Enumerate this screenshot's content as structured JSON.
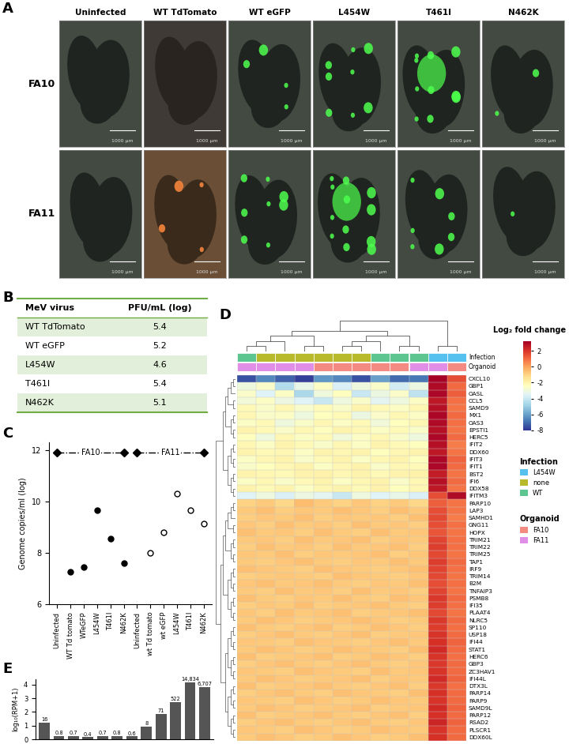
{
  "chart_data": [
    {
      "type": "image_grid",
      "panel": "A",
      "columns": [
        "Uninfected",
        "WT TdTomato",
        "WT eGFP",
        "L454W",
        "T461I",
        "N462K"
      ],
      "rows": [
        "FA10",
        "FA11"
      ],
      "scale_bar": "1000 µm"
    },
    {
      "type": "table",
      "panel": "B",
      "header": [
        "MeV virus",
        "PFU/mL (log)"
      ],
      "rows": [
        [
          "WT TdTomato",
          5.4
        ],
        [
          "WT eGFP",
          5.2
        ],
        [
          "L454W",
          4.6
        ],
        [
          "T461I",
          5.4
        ],
        [
          "N462K",
          5.1
        ]
      ]
    },
    {
      "type": "scatter",
      "panel": "C",
      "categories": [
        "Uninfected",
        "WT Td tomato",
        "WTeGFP",
        "L454W",
        "T461I",
        "N462K",
        "Uninfected",
        "wt Td tomato",
        "wt eGFP",
        "L454W",
        "T461I",
        "N462K"
      ],
      "y_label": "Genome copies/ml (log)",
      "ylim": [
        6,
        12.3
      ],
      "yticks": [
        6,
        8,
        10,
        12
      ],
      "series": [
        {
          "name": "FA10",
          "type": "line",
          "line_style": "dashdot",
          "color": "#000000",
          "values": [
            11.9,
            11.9,
            11.9,
            11.9,
            11.9,
            11.9,
            null,
            null,
            null,
            null,
            null,
            null
          ]
        },
        {
          "name": "FA11",
          "type": "line",
          "line_style": "dashdot",
          "color": "#000000",
          "values": [
            null,
            null,
            null,
            null,
            null,
            null,
            11.9,
            11.9,
            11.9,
            11.9,
            11.9,
            11.9
          ]
        },
        {
          "type": "scatter",
          "marker": "diamond",
          "color": "#000000",
          "values": [
            11.9,
            null,
            null,
            null,
            null,
            11.9,
            11.9,
            null,
            null,
            null,
            null,
            11.9
          ]
        },
        {
          "type": "scatter",
          "marker": "circle",
          "color": "#000000",
          "values": [
            null,
            7.25,
            7.45,
            9.65,
            8.55,
            7.6,
            null,
            null,
            null,
            null,
            null,
            null
          ]
        },
        {
          "type": "scatter",
          "marker": "hollow_circle",
          "color": "#000000",
          "values": [
            null,
            null,
            null,
            null,
            null,
            null,
            null,
            8.0,
            8.8,
            10.3,
            9.65,
            9.15
          ]
        }
      ]
    },
    {
      "type": "heatmap",
      "panel": "D",
      "rows": [
        "CXCL10",
        "GBP1",
        "OASL",
        "CCL5",
        "SAMD9",
        "MX1",
        "OAS3",
        "EPSTI1",
        "HERC5",
        "IFIT2",
        "DDX60",
        "IFIT3",
        "IFIT1",
        "BST2",
        "IFI6",
        "DDX58",
        "IFITM3",
        "PARP10",
        "LAP3",
        "SAMHD1",
        "GNG11",
        "HOPX",
        "TRIM21",
        "TRIM22",
        "TRIM25",
        "TAP1",
        "IRF9",
        "TRIM14",
        "B2M",
        "TNFAIP3",
        "PSMB8",
        "IFI35",
        "PLAAT4",
        "NLRC5",
        "SP110",
        "USP18",
        "IFI44",
        "STAT1",
        "HERC6",
        "GBP3",
        "ZC3HAV1",
        "IFI44L",
        "DTX3L",
        "PARP14",
        "PARP9",
        "SAMD9L",
        "PARP12",
        "RSAD2",
        "PLSCR1",
        "DDX60L"
      ],
      "values": [
        [
          -7.5,
          -6.5,
          -7.2,
          -7.8,
          -6.2,
          -6.5,
          -7.5,
          -6.0,
          -7.0,
          -6.8,
          3.2,
          1.5
        ],
        [
          -3.0,
          -2.6,
          -4.5,
          -3.2,
          -2.5,
          -3.6,
          -3.0,
          -2.6,
          -3.8,
          -3.1,
          2.9,
          1.0
        ],
        [
          -2.6,
          -3.5,
          -2.5,
          -4.6,
          -3.0,
          -2.4,
          -4.0,
          -3.1,
          -2.6,
          -4.2,
          3.0,
          1.2
        ],
        [
          -2.9,
          -2.5,
          -3.1,
          -3.5,
          -4.0,
          -3.0,
          -2.6,
          -3.4,
          -3.0,
          -2.5,
          2.6,
          0.9
        ],
        [
          -2.2,
          -2.6,
          -2.1,
          -2.7,
          -2.3,
          -2.6,
          -2.0,
          -2.2,
          -2.5,
          -2.1,
          2.8,
          0.8
        ],
        [
          -2.1,
          -2.6,
          -2.5,
          -3.0,
          -2.4,
          -2.2,
          -3.1,
          -2.6,
          -2.1,
          -2.5,
          3.0,
          1.0
        ],
        [
          -2.5,
          -2.2,
          -3.0,
          -2.6,
          -2.1,
          -2.5,
          -2.2,
          -2.9,
          -2.4,
          -2.1,
          2.9,
          0.9
        ],
        [
          -2.0,
          -2.2,
          -2.6,
          -2.1,
          -2.4,
          -2.0,
          -2.1,
          -2.5,
          -2.2,
          -2.6,
          2.8,
          0.8
        ],
        [
          -2.4,
          -3.0,
          -2.1,
          -2.5,
          -2.2,
          -2.9,
          -2.5,
          -2.1,
          -2.6,
          -3.0,
          3.0,
          1.0
        ],
        [
          -2.1,
          -2.5,
          -2.0,
          -2.2,
          -2.6,
          -2.1,
          -2.5,
          -2.0,
          -2.2,
          -2.4,
          2.8,
          0.7
        ],
        [
          -2.0,
          -2.2,
          -2.1,
          -2.5,
          -2.0,
          -2.1,
          -2.0,
          -2.4,
          -2.1,
          -2.0,
          2.6,
          0.8
        ],
        [
          -2.5,
          -2.1,
          -2.0,
          -2.6,
          -2.2,
          -2.0,
          -2.5,
          -2.1,
          -2.0,
          -2.4,
          3.0,
          1.1
        ],
        [
          -2.6,
          -2.4,
          -2.1,
          -2.0,
          -2.5,
          -2.1,
          -2.0,
          -2.6,
          -2.1,
          -2.2,
          3.0,
          1.0
        ],
        [
          -2.0,
          -2.1,
          -2.2,
          -2.0,
          -1.9,
          -2.1,
          -2.0,
          -2.2,
          -2.0,
          -1.9,
          2.5,
          0.8
        ],
        [
          -2.5,
          -2.1,
          -2.6,
          -2.2,
          -2.0,
          -2.5,
          -2.1,
          -2.0,
          -2.6,
          -2.1,
          2.8,
          1.0
        ],
        [
          -2.0,
          -2.2,
          -2.0,
          -2.5,
          -2.1,
          -2.0,
          -2.2,
          -2.0,
          -2.4,
          -2.1,
          2.6,
          0.8
        ],
        [
          -3.5,
          -3.0,
          -3.6,
          -3.1,
          -3.4,
          -4.0,
          -3.0,
          -3.5,
          -3.2,
          -3.6,
          1.5,
          2.9
        ],
        [
          -1.0,
          -0.8,
          -1.1,
          -0.5,
          -0.8,
          -1.0,
          -0.7,
          -1.0,
          -0.8,
          -1.1,
          1.2,
          0.8
        ],
        [
          -0.8,
          -0.6,
          -0.9,
          -0.7,
          -0.8,
          -0.6,
          -0.7,
          -0.9,
          -0.6,
          -0.8,
          1.5,
          0.8
        ],
        [
          -0.9,
          -0.7,
          -0.8,
          -0.6,
          -0.9,
          -0.7,
          -0.8,
          -0.7,
          -0.9,
          -0.6,
          1.6,
          0.7
        ],
        [
          -0.7,
          -0.9,
          -0.6,
          -0.8,
          -0.7,
          -0.9,
          -0.6,
          -0.8,
          -0.7,
          -0.9,
          1.5,
          0.9
        ],
        [
          -0.6,
          -0.8,
          -0.7,
          -0.9,
          -0.6,
          -0.8,
          -0.9,
          -0.6,
          -0.8,
          -0.7,
          1.4,
          0.8
        ],
        [
          -0.8,
          -0.7,
          -0.9,
          -0.6,
          -0.8,
          -0.7,
          -0.6,
          -0.9,
          -0.7,
          -0.8,
          1.7,
          0.9
        ],
        [
          -0.9,
          -0.6,
          -0.8,
          -0.7,
          -0.9,
          -0.6,
          -0.8,
          -0.7,
          -0.6,
          -0.9,
          1.8,
          0.9
        ],
        [
          -0.7,
          -0.8,
          -0.6,
          -0.9,
          -0.7,
          -0.8,
          -0.7,
          -0.6,
          -0.9,
          -0.7,
          1.6,
          0.8
        ],
        [
          -0.8,
          -0.9,
          -0.7,
          -0.6,
          -0.8,
          -0.9,
          -0.7,
          -0.8,
          -0.6,
          -0.8,
          1.8,
          1.0
        ],
        [
          -0.6,
          -0.7,
          -0.8,
          -0.9,
          -0.6,
          -0.7,
          -0.8,
          -0.9,
          -0.7,
          -0.6,
          1.7,
          0.9
        ],
        [
          -0.9,
          -0.8,
          -0.7,
          -0.8,
          -0.9,
          -0.6,
          -0.7,
          -0.8,
          -0.9,
          -0.7,
          1.6,
          0.8
        ],
        [
          -0.7,
          -0.6,
          -0.8,
          -0.7,
          -0.6,
          -0.8,
          -0.9,
          -0.7,
          -0.8,
          -0.6,
          1.5,
          0.9
        ],
        [
          -0.8,
          -0.9,
          -0.6,
          -0.8,
          -0.7,
          -0.9,
          -0.6,
          -0.8,
          -0.7,
          -0.9,
          1.7,
          0.8
        ],
        [
          -0.6,
          -0.8,
          -0.9,
          -0.7,
          -0.8,
          -0.6,
          -0.8,
          -0.9,
          -0.6,
          -0.7,
          1.9,
          1.0
        ],
        [
          -0.9,
          -0.7,
          -0.8,
          -0.6,
          -0.9,
          -0.8,
          -0.7,
          -0.6,
          -0.8,
          -0.9,
          1.8,
          0.9
        ],
        [
          -0.7,
          -0.9,
          -0.6,
          -0.8,
          -0.7,
          -0.6,
          -0.9,
          -0.8,
          -0.7,
          -0.6,
          1.6,
          0.8
        ],
        [
          -0.8,
          -0.6,
          -0.7,
          -0.9,
          -0.8,
          -0.7,
          -0.6,
          -0.7,
          -0.9,
          -0.8,
          1.9,
          1.0
        ],
        [
          -0.6,
          -0.8,
          -0.9,
          -0.7,
          -0.6,
          -0.9,
          -0.8,
          -0.6,
          -0.7,
          -0.9,
          1.8,
          0.9
        ],
        [
          -0.9,
          -0.7,
          -0.6,
          -0.8,
          -0.9,
          -0.7,
          -0.6,
          -0.9,
          -0.8,
          -0.7,
          2.0,
          1.0
        ],
        [
          -0.7,
          -0.8,
          -0.9,
          -0.6,
          -0.7,
          -0.8,
          -0.9,
          -0.7,
          -0.6,
          -0.8,
          2.1,
          1.1
        ],
        [
          -0.8,
          -0.6,
          -0.7,
          -0.9,
          -0.8,
          -0.6,
          -0.7,
          -0.8,
          -0.9,
          -0.6,
          2.2,
          1.0
        ],
        [
          -0.6,
          -0.9,
          -0.8,
          -0.7,
          -0.6,
          -0.9,
          -0.8,
          -0.6,
          -0.7,
          -0.9,
          2.0,
          0.9
        ],
        [
          -0.9,
          -0.7,
          -0.6,
          -0.8,
          -0.9,
          -0.7,
          -0.6,
          -0.8,
          -0.9,
          -0.7,
          1.9,
          1.0
        ],
        [
          -0.7,
          -0.8,
          -0.9,
          -0.6,
          -0.7,
          -0.8,
          -0.9,
          -0.6,
          -0.8,
          -0.7,
          2.0,
          1.0
        ],
        [
          -0.8,
          -0.6,
          -0.7,
          -0.9,
          -0.8,
          -0.7,
          -0.6,
          -0.9,
          -0.7,
          -0.8,
          2.2,
          1.1
        ],
        [
          -0.6,
          -0.9,
          -0.8,
          -0.7,
          -0.6,
          -0.8,
          -0.9,
          -0.7,
          -0.6,
          -0.9,
          1.9,
          0.9
        ],
        [
          -0.9,
          -0.7,
          -0.6,
          -0.8,
          -0.9,
          -0.6,
          -0.7,
          -0.8,
          -0.9,
          -0.6,
          2.1,
          1.0
        ],
        [
          -0.7,
          -0.8,
          -0.9,
          -0.6,
          -0.7,
          -0.9,
          -0.8,
          -0.6,
          -0.7,
          -0.8,
          2.0,
          1.0
        ],
        [
          -0.8,
          -0.6,
          -0.7,
          -0.9,
          -0.8,
          -0.7,
          -0.6,
          -0.9,
          -0.8,
          -0.7,
          2.2,
          1.1
        ],
        [
          -0.6,
          -0.9,
          -0.8,
          -0.7,
          -0.6,
          -0.8,
          -0.9,
          -0.7,
          -0.6,
          -0.9,
          2.1,
          1.0
        ],
        [
          -0.9,
          -0.7,
          -0.6,
          -0.8,
          -0.9,
          -0.7,
          -0.6,
          -0.8,
          -0.9,
          -0.7,
          2.3,
          1.1
        ],
        [
          -0.7,
          -0.8,
          -0.9,
          -0.6,
          -0.7,
          -0.9,
          -0.8,
          -0.6,
          -0.7,
          -0.8,
          2.0,
          1.0
        ],
        [
          -0.8,
          -0.6,
          -0.7,
          -0.9,
          -0.8,
          -0.6,
          -0.7,
          -0.9,
          -0.8,
          -0.6,
          2.1,
          1.0
        ]
      ],
      "colorbar_label": "Log₂ fold change",
      "colorbar_range": [
        -8,
        3.2
      ],
      "colorbar_ticks": [
        -8,
        -6,
        -4,
        -2,
        0,
        2
      ],
      "annotations": [
        {
          "name": "Infection",
          "categories": [
            "L454W",
            "none",
            "WT"
          ],
          "colors": [
            "#56c1ee",
            "#b9b92c",
            "#5cc590"
          ],
          "values": [
            "WT",
            "none",
            "none",
            "none",
            "none",
            "none",
            "none",
            "WT",
            "WT",
            "WT",
            "L454W",
            "L454W"
          ]
        },
        {
          "name": "Organoid",
          "categories": [
            "FA10",
            "FA11"
          ],
          "colors": [
            "#f38b82",
            "#e08ee6"
          ],
          "values": [
            "FA11",
            "FA11",
            "FA11",
            "FA11",
            "FA10",
            "FA10",
            "FA10",
            "FA10",
            "FA10",
            "FA11",
            "FA11",
            "FA10"
          ]
        }
      ]
    },
    {
      "type": "bar",
      "panel": "E",
      "y_label": "log₁₀(RPM+1)",
      "color": "#555555",
      "values": [
        1.23,
        0.255,
        0.23,
        0.146,
        0.23,
        0.255,
        0.204,
        0.954,
        1.857,
        2.719,
        4.171,
        3.827
      ],
      "rpm_labels": [
        "16",
        "0.8",
        "0.7",
        "0.4",
        "0.7",
        "0.8",
        "0.6",
        "8",
        "71",
        "522",
        "14,834",
        "6,707"
      ],
      "ylim": [
        0,
        4.4
      ],
      "yticks": [
        0,
        1,
        2,
        3,
        4
      ],
      "tick_labels": "y"
    }
  ]
}
